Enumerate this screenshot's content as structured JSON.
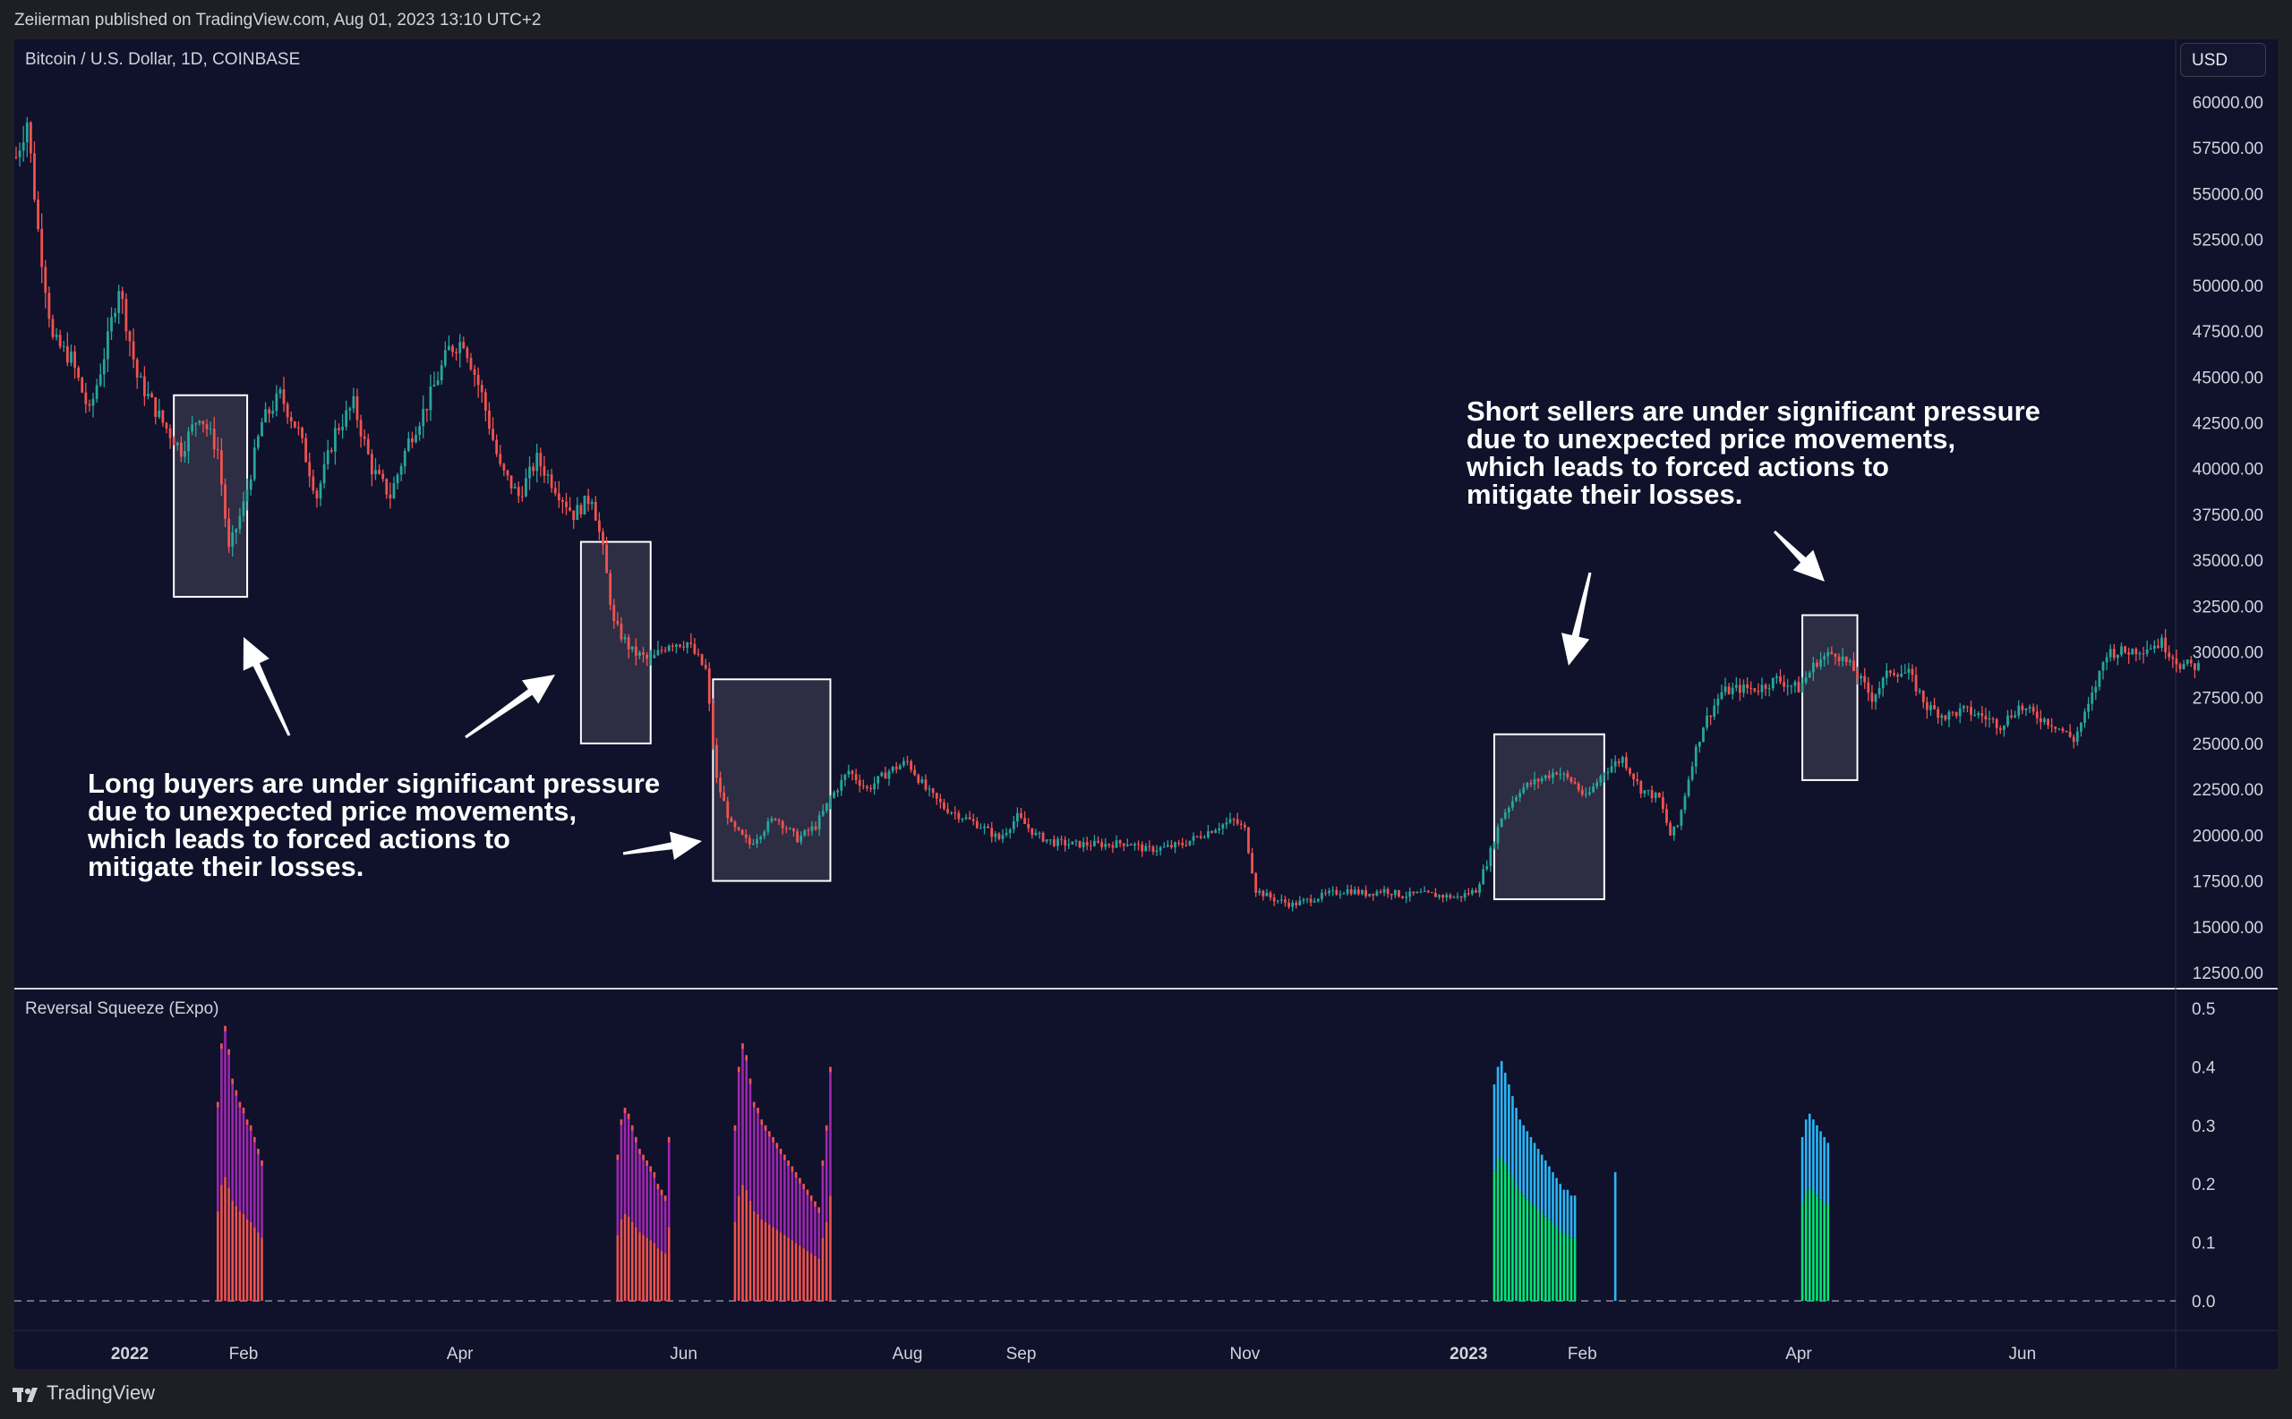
{
  "header": {
    "published": "Zeiierman published on TradingView.com, Aug 01, 2023 13:10 UTC+2"
  },
  "symbol": "Bitcoin / U.S. Dollar, 1D, COINBASE",
  "currency_button": "USD",
  "indicator_name": "Reversal Squeeze (Expo)",
  "annotations": {
    "long": "Long buyers are under significant pressure\ndue to unexpected price movements,\nwhich leads to forced actions to\nmitigate their losses.",
    "short": "Short sellers are under significant pressure\ndue to unexpected price movements,\nwhich leads to forced actions to\nmitigate their losses."
  },
  "footer": {
    "brand": "TradingView"
  },
  "colors": {
    "background": "#10112b",
    "up": "#26a69a",
    "down": "#ef5350",
    "squeeze_red": "#ef5350",
    "squeeze_purple": "#9c27b0",
    "squeeze_green": "#00e676",
    "squeeze_blue": "#29b6f6",
    "box_fill": "#ffffff"
  },
  "chart_data": [
    {
      "type": "candlestick",
      "ylim": [
        12500,
        61000
      ],
      "y_ticks": [
        "60000.00",
        "57500.00",
        "55000.00",
        "52500.00",
        "50000.00",
        "47500.00",
        "45000.00",
        "42500.00",
        "40000.00",
        "37500.00",
        "35000.00",
        "32500.00",
        "30000.00",
        "27500.00",
        "25000.00",
        "22500.00",
        "20000.00",
        "17500.00",
        "15000.00",
        "12500.00"
      ],
      "x_ticks": [
        {
          "label": "2022",
          "bold": true,
          "day": 31
        },
        {
          "label": "Feb",
          "bold": false,
          "day": 62
        },
        {
          "label": "Apr",
          "bold": false,
          "day": 121
        },
        {
          "label": "Jun",
          "bold": false,
          "day": 182
        },
        {
          "label": "Aug",
          "bold": false,
          "day": 243
        },
        {
          "label": "Sep",
          "bold": false,
          "day": 274
        },
        {
          "label": "Nov",
          "bold": false,
          "day": 335
        },
        {
          "label": "2023",
          "bold": true,
          "day": 396
        },
        {
          "label": "Feb",
          "bold": false,
          "day": 427
        },
        {
          "label": "Apr",
          "bold": false,
          "day": 486
        },
        {
          "label": "Jun",
          "bold": false,
          "day": 547
        }
      ],
      "x_range_days": [
        0,
        600
      ],
      "price_path": [
        [
          0,
          57000
        ],
        [
          3,
          59000
        ],
        [
          6,
          53000
        ],
        [
          10,
          47000
        ],
        [
          15,
          46000
        ],
        [
          20,
          43000
        ],
        [
          25,
          47000
        ],
        [
          28,
          50000
        ],
        [
          33,
          45000
        ],
        [
          40,
          42500
        ],
        [
          45,
          41000
        ],
        [
          50,
          43000
        ],
        [
          55,
          41000
        ],
        [
          58,
          35500
        ],
        [
          62,
          38000
        ],
        [
          67,
          42500
        ],
        [
          72,
          44000
        ],
        [
          77,
          42000
        ],
        [
          82,
          38500
        ],
        [
          87,
          42000
        ],
        [
          92,
          43500
        ],
        [
          97,
          40000
        ],
        [
          102,
          38500
        ],
        [
          107,
          41500
        ],
        [
          112,
          43500
        ],
        [
          118,
          46500
        ],
        [
          122,
          47000
        ],
        [
          127,
          44000
        ],
        [
          132,
          40000
        ],
        [
          137,
          38500
        ],
        [
          142,
          40500
        ],
        [
          147,
          39000
        ],
        [
          152,
          37500
        ],
        [
          157,
          38500
        ],
        [
          160,
          35500
        ],
        [
          163,
          31500
        ],
        [
          168,
          30000
        ],
        [
          173,
          29500
        ],
        [
          178,
          30500
        ],
        [
          183,
          30500
        ],
        [
          188,
          29000
        ],
        [
          191,
          23000
        ],
        [
          195,
          20500
        ],
        [
          200,
          19500
        ],
        [
          207,
          21000
        ],
        [
          213,
          19800
        ],
        [
          218,
          20500
        ],
        [
          222,
          22000
        ],
        [
          227,
          23500
        ],
        [
          232,
          22500
        ],
        [
          238,
          23500
        ],
        [
          243,
          24000
        ],
        [
          248,
          22500
        ],
        [
          253,
          21500
        ],
        [
          258,
          21000
        ],
        [
          263,
          20500
        ],
        [
          268,
          19800
        ],
        [
          273,
          21000
        ],
        [
          278,
          20000
        ],
        [
          283,
          19600
        ],
        [
          288,
          19500
        ],
        [
          293,
          19500
        ],
        [
          298,
          19500
        ],
        [
          303,
          19600
        ],
        [
          308,
          19200
        ],
        [
          313,
          19300
        ],
        [
          318,
          19500
        ],
        [
          323,
          20000
        ],
        [
          328,
          20500
        ],
        [
          332,
          20800
        ],
        [
          335,
          20300
        ],
        [
          338,
          17000
        ],
        [
          343,
          16500
        ],
        [
          348,
          16200
        ],
        [
          353,
          16500
        ],
        [
          358,
          16800
        ],
        [
          363,
          17000
        ],
        [
          368,
          16800
        ],
        [
          373,
          17000
        ],
        [
          378,
          16700
        ],
        [
          383,
          16800
        ],
        [
          388,
          16700
        ],
        [
          393,
          16600
        ],
        [
          398,
          17000
        ],
        [
          401,
          18500
        ],
        [
          405,
          21000
        ],
        [
          410,
          22500
        ],
        [
          415,
          23000
        ],
        [
          420,
          23500
        ],
        [
          425,
          22800
        ],
        [
          428,
          22000
        ],
        [
          433,
          23500
        ],
        [
          438,
          24200
        ],
        [
          443,
          22500
        ],
        [
          448,
          22000
        ],
        [
          451,
          20000
        ],
        [
          453,
          20500
        ],
        [
          457,
          24000
        ],
        [
          460,
          26000
        ],
        [
          465,
          27800
        ],
        [
          470,
          28000
        ],
        [
          475,
          28000
        ],
        [
          480,
          28500
        ],
        [
          486,
          28000
        ],
        [
          491,
          29500
        ],
        [
          496,
          30000
        ],
        [
          501,
          29000
        ],
        [
          506,
          27500
        ],
        [
          511,
          29000
        ],
        [
          516,
          28800
        ],
        [
          521,
          27000
        ],
        [
          526,
          26500
        ],
        [
          531,
          26800
        ],
        [
          536,
          26500
        ],
        [
          541,
          26000
        ],
        [
          546,
          27000
        ],
        [
          551,
          26500
        ],
        [
          556,
          26000
        ],
        [
          561,
          25200
        ],
        [
          565,
          27000
        ],
        [
          570,
          30000
        ],
        [
          575,
          30000
        ],
        [
          580,
          30200
        ],
        [
          585,
          30500
        ],
        [
          590,
          29300
        ],
        [
          595,
          29200
        ]
      ],
      "boxes": [
        {
          "day0": 43,
          "day1": 63,
          "price0": 33000,
          "price1": 44000
        },
        {
          "day0": 154,
          "day1": 173,
          "price0": 25000,
          "price1": 36000
        },
        {
          "day0": 190,
          "day1": 222,
          "price0": 17500,
          "price1": 28500
        },
        {
          "day0": 403,
          "day1": 433,
          "price0": 16500,
          "price1": 25500
        },
        {
          "day0": 487,
          "day1": 502,
          "price0": 23000,
          "price1": 32000
        }
      ]
    },
    {
      "type": "bar",
      "name": "Reversal Squeeze (Expo)",
      "ylim": [
        -0.05,
        0.5
      ],
      "y_ticks": [
        "0.5",
        "0.4",
        "0.3",
        "0.2",
        "0.1",
        "0.0"
      ],
      "zero_line": 0.0,
      "clusters": [
        {
          "color": "red",
          "day0": 55,
          "day1": 67,
          "values": [
            0.34,
            0.44,
            0.47,
            0.43,
            0.38,
            0.36,
            0.34,
            0.33,
            0.31,
            0.3,
            0.28,
            0.26,
            0.24
          ]
        },
        {
          "color": "red",
          "day0": 164,
          "day1": 178,
          "values": [
            0.25,
            0.31,
            0.33,
            0.32,
            0.3,
            0.28,
            0.26,
            0.25,
            0.24,
            0.23,
            0.22,
            0.2,
            0.19,
            0.18,
            0.28
          ]
        },
        {
          "color": "red",
          "day0": 196,
          "day1": 222,
          "values": [
            0.3,
            0.4,
            0.44,
            0.42,
            0.38,
            0.34,
            0.33,
            0.31,
            0.3,
            0.29,
            0.28,
            0.27,
            0.26,
            0.25,
            0.24,
            0.23,
            0.22,
            0.21,
            0.2,
            0.19,
            0.18,
            0.17,
            0.16,
            0.24,
            0.3,
            0.4
          ]
        },
        {
          "color": "green",
          "day0": 403,
          "day1": 425,
          "values": [
            0.37,
            0.4,
            0.41,
            0.39,
            0.37,
            0.35,
            0.33,
            0.31,
            0.3,
            0.29,
            0.28,
            0.27,
            0.26,
            0.25,
            0.24,
            0.23,
            0.22,
            0.21,
            0.2,
            0.19,
            0.19,
            0.18,
            0.18
          ]
        },
        {
          "color": "blue",
          "day0": 436,
          "day1": 436,
          "values": [
            0.22
          ]
        },
        {
          "color": "green",
          "day0": 487,
          "day1": 494,
          "values": [
            0.28,
            0.31,
            0.32,
            0.31,
            0.3,
            0.29,
            0.28,
            0.27
          ]
        }
      ]
    }
  ]
}
